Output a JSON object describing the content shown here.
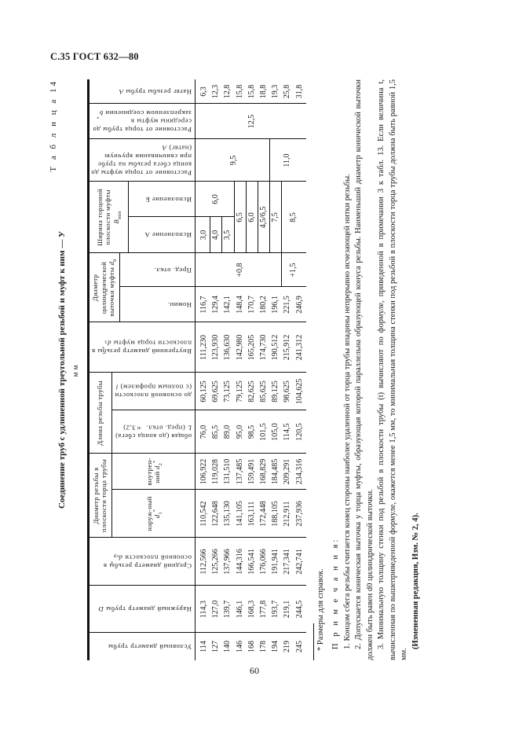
{
  "page": {
    "header": "С.35 ГОСТ 632—80",
    "number": "60"
  },
  "table": {
    "label": "Т а б л и ц а 14",
    "title": "Соединение труб с удлиненной треугольной резьбой и муфт к ним — У",
    "units": "мм",
    "headers": {
      "nominal_diameter": "Условный диаметр трубы",
      "outer_diameter": {
        "text": "Наружный диаметр трубы",
        "sym": "D"
      },
      "mean_diameter": {
        "text": "Средний диаметр резьбы в основной плоскости",
        "sym": "d",
        "sub": "ср",
        "sup": "*"
      },
      "thread_diam_group": "Диаметр резьбы в плоскости торца трубы",
      "thread_outer": {
        "text": "наруж-ный",
        "sym": "d",
        "sub": "1",
        "sup": "*"
      },
      "thread_inner": {
        "text": "внутрен-ний",
        "sym": "d",
        "sub": "2",
        "sup": "*"
      },
      "length_group": "Длина резьбы трубы",
      "length_total": {
        "text": "общая (до конца сбега)",
        "sym": "L",
        "tail": "(пред. откл. ±3,2)"
      },
      "length_base": {
        "text": "до основной плоскости (с полным профилем)",
        "sym": "l"
      },
      "coupling_inner": {
        "text": "Внутренний диаметр резьбы в плоскости торца муфты",
        "sym": "d",
        "sub": "3",
        "sup": "*"
      },
      "bore_group": {
        "text": "Диаметр цилиндрической выточки муфты",
        "sym": "d",
        "sub": "0"
      },
      "bore_nominal": "Номин.",
      "bore_tolerance": "Пред. откл.",
      "face_group": {
        "text": "Ширина торцовой плоскости муфты",
        "sym": "B",
        "sub": "min"
      },
      "version_a": "Исполнение А",
      "version_b": "Исполнение Б",
      "dist_coupling": {
        "text": "Расстояние от торца муфты до конца сбега резьбы на трубе при свинчивании вручную (натяг)",
        "sym": "A"
      },
      "dist_pipe": {
        "text": "Расстояние от торца трубы до середины муфты в закрепленном соединении",
        "sym": "b",
        "sup": "*"
      },
      "makeup": {
        "text": "Натяг резьбы трубы",
        "sym": "A"
      }
    },
    "rows": [
      {
        "dn": "114",
        "D": "114,3",
        "dcp": "112,566",
        "d1": "110,542",
        "d2": "106,922",
        "L": "76,0",
        "l": "60,125",
        "d3": "111,230",
        "d0": "116,7",
        "A": "6,3"
      },
      {
        "dn": "127",
        "D": "127,0",
        "dcp": "125,266",
        "d1": "122,648",
        "d2": "119,028",
        "L": "85,5",
        "l": "69,625",
        "d3": "123,930",
        "d0": "129,4",
        "A": "12,3"
      },
      {
        "dn": "140",
        "D": "139,7",
        "dcp": "137,966",
        "d1": "135,130",
        "d2": "131,510",
        "L": "89,0",
        "l": "73,125",
        "d3": "136,630",
        "d0": "142,1",
        "A": "12,8"
      },
      {
        "dn": "146",
        "D": "146,1",
        "dcp": "144,316",
        "d1": "141,105",
        "d2": "137,485",
        "L": "95,0",
        "l": "79,125",
        "d3": "142,980",
        "d0": "148,4",
        "A": "15,8"
      },
      {
        "dn": "168",
        "D": "168,3",
        "dcp": "166,541",
        "d1": "163,111",
        "d2": "159,491",
        "L": "98,5",
        "l": "82,625",
        "d3": "165,205",
        "d0": "170,7",
        "A": "15,8"
      },
      {
        "dn": "178",
        "D": "177,8",
        "dcp": "176,066",
        "d1": "172,448",
        "d2": "168,829",
        "L": "101,5",
        "l": "85,625",
        "d3": "174,730",
        "d0": "180,2",
        "A": "18,8"
      },
      {
        "dn": "194",
        "D": "193,7",
        "dcp": "191,941",
        "d1": "188,105",
        "d2": "184,485",
        "L": "105,0",
        "l": "89,125",
        "d3": "190,512",
        "d0": "196,1",
        "A": "19,3"
      },
      {
        "dn": "219",
        "D": "219,1",
        "dcp": "217,341",
        "d1": "212,911",
        "d2": "209,291",
        "L": "114,5",
        "l": "98,625",
        "d3": "215,912",
        "d0": "221,5",
        "A": "25,8"
      },
      {
        "dn": "245",
        "D": "244,5",
        "dcp": "242,741",
        "d1": "237,936",
        "d2": "234,316",
        "L": "120,5",
        "l": "104,625",
        "d3": "241,312",
        "d0": "246,9",
        "A": "31,8"
      }
    ],
    "merged": {
      "tol_1": "+0,8",
      "tol_2": "+1,5",
      "va_1": "3,0",
      "va_2": "4,0",
      "va_3": "3,5",
      "vb_1": "6,0",
      "vab_4": "6,5",
      "vab_5": "6,0",
      "vab_6": "4,5/6,5",
      "vab_7": "7,5",
      "vab_8": "8,5",
      "dist_c_1": "9,5",
      "dist_c_2": "11,0",
      "dist_p": "12,5"
    }
  },
  "notes": {
    "footnote": "* Размеры для справок.",
    "heading": "П р и м е ч а н и я:",
    "items": [
      "1. Концом сбега резьбы считается конец стороны наиболее удаленной от торца трубы впадины непрерывно исчезающей нитки резьбы.",
      "2. Допускается коническая выточка у торца муфты, образующая которой параллельна образующей конуса резьбы. Наименьший диаметр конической выточки должен быть равен d0 цилиндрической выточки.",
      "3. Минимальную толщину стенки под резьбой в плоскости трубы (t) вычисляют по формуле, приведенной в примечании 3 к табл. 13. Если величина t, вычисленная по вышеприведенной формуле, окажется менее 1,5 мм, то минимальная толщина стенки под резьбой в плоскости торца трубы должна быть равной 1,5 мм."
    ],
    "amendment": "(Измененная редакция, Изм. № 2, 4)."
  }
}
